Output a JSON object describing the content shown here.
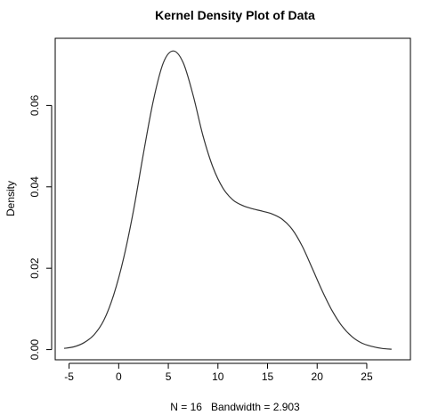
{
  "chart_data": {
    "type": "line",
    "title": "Kernel Density Plot of Data",
    "xlabel": "N = 16   Bandwidth = 2.903",
    "ylabel": "Density",
    "xlim": [
      -6.4,
      29.4
    ],
    "ylim": [
      -0.0025,
      0.0765
    ],
    "x_ticks": [
      -5,
      0,
      5,
      10,
      15,
      20,
      25
    ],
    "x_tick_labels": [
      "-5",
      "0",
      "5",
      "10",
      "15",
      "20",
      "25"
    ],
    "y_ticks": [
      0.0,
      0.02,
      0.04,
      0.06
    ],
    "y_tick_labels": [
      "0.00",
      "0.02",
      "0.04",
      "0.06"
    ],
    "grid": false,
    "series": [
      {
        "x": [
          -5.5,
          -4.5,
          -3.5,
          -2.5,
          -1.5,
          -0.5,
          0.5,
          1.5,
          2.5,
          3.5,
          4.5,
          5.5,
          6.5,
          7.5,
          8.5,
          9.5,
          10.5,
          11.5,
          12.5,
          13.5,
          14.5,
          15.5,
          16.5,
          17.5,
          18.5,
          19.5,
          20.5,
          21.5,
          22.5,
          23.5,
          24.5,
          25.5,
          26.5,
          27.5
        ],
        "y": [
          0.0003,
          0.0007,
          0.0017,
          0.0036,
          0.0072,
          0.0135,
          0.0225,
          0.0343,
          0.0483,
          0.0613,
          0.0705,
          0.0734,
          0.0705,
          0.0625,
          0.0525,
          0.0448,
          0.0397,
          0.0368,
          0.0354,
          0.0346,
          0.034,
          0.0333,
          0.032,
          0.0295,
          0.0254,
          0.02,
          0.0145,
          0.0096,
          0.0058,
          0.0032,
          0.0016,
          0.0008,
          0.0003,
          0.0001
        ]
      }
    ]
  }
}
